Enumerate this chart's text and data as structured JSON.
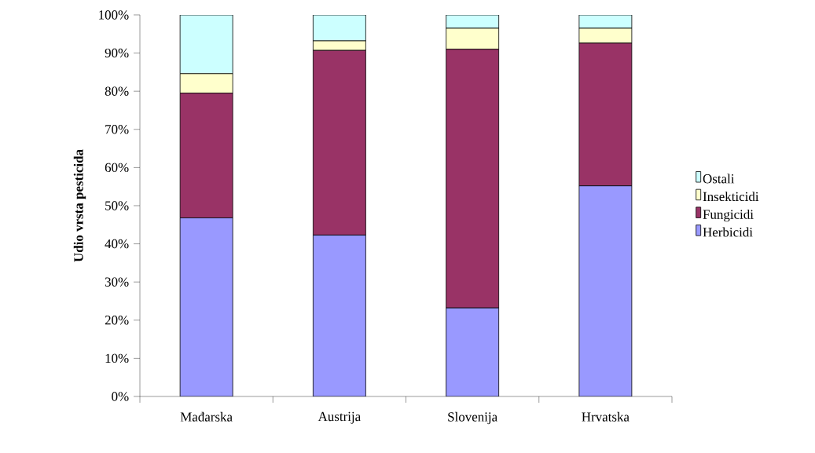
{
  "chart_data": {
    "type": "bar",
    "stacked": true,
    "ylabel": "Udio vrsta pesticida",
    "categories": [
      "Mađarska",
      "Austrija",
      "Slovenija",
      "Hrvatska"
    ],
    "series": [
      {
        "name": "Herbicidi",
        "color": "#9999ff",
        "values": [
          46.8,
          42.3,
          23.2,
          55.2
        ]
      },
      {
        "name": "Fungicidi",
        "color": "#993366",
        "values": [
          32.7,
          48.4,
          67.8,
          37.4
        ]
      },
      {
        "name": "Insekticidi",
        "color": "#ffffcc",
        "values": [
          5.1,
          2.5,
          5.5,
          3.9
        ]
      },
      {
        "name": "Ostali",
        "color": "#ccffff",
        "values": [
          15.4,
          6.8,
          3.5,
          3.5
        ]
      }
    ],
    "ylim": [
      0,
      100
    ],
    "yticks": [
      {
        "value": 0,
        "label": "0%"
      },
      {
        "value": 10,
        "label": "10%"
      },
      {
        "value": 20,
        "label": "20%"
      },
      {
        "value": 30,
        "label": "30%"
      },
      {
        "value": 40,
        "label": "40%"
      },
      {
        "value": 50,
        "label": "50%"
      },
      {
        "value": 60,
        "label": "60%"
      },
      {
        "value": 70,
        "label": "70%"
      },
      {
        "value": 80,
        "label": "80%"
      },
      {
        "value": 90,
        "label": "90%"
      },
      {
        "value": 100,
        "label": "100%"
      }
    ],
    "legend": "right",
    "grid": false
  }
}
